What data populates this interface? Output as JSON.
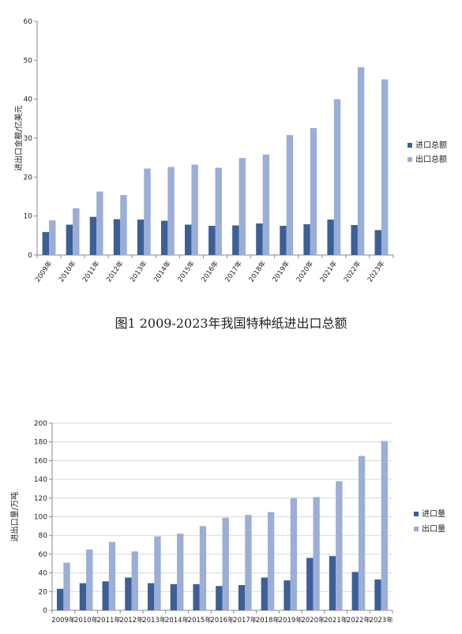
{
  "chart_data": [
    {
      "type": "bar",
      "categories": [
        "2009年",
        "2010年",
        "2011年",
        "2012年",
        "2013年",
        "2014年",
        "2015年",
        "2016年",
        "2017年",
        "2018年",
        "2019年",
        "2020年",
        "2021年",
        "2022年",
        "2023年"
      ],
      "ylabel": "进出口金额/亿美元",
      "ylim": [
        0,
        60
      ],
      "yticks": [
        0,
        10,
        20,
        30,
        40,
        50,
        60
      ],
      "grid": false,
      "legend_position": "right",
      "series": [
        {
          "name": "进口总额",
          "color": "#3c5f98",
          "values": [
            5.9,
            7.8,
            9.8,
            9.2,
            9.1,
            8.8,
            7.8,
            7.5,
            7.6,
            8.1,
            7.5,
            7.9,
            9.1,
            7.7,
            6.4
          ]
        },
        {
          "name": "出口总额",
          "color": "#9aaed6",
          "values": [
            8.9,
            12.0,
            16.3,
            15.4,
            22.2,
            22.6,
            23.2,
            22.4,
            24.9,
            25.8,
            30.8,
            32.6,
            40.0,
            48.2,
            45.1
          ]
        }
      ]
    },
    {
      "type": "bar",
      "categories": [
        "2009年",
        "2010年",
        "2011年",
        "2012年",
        "2013年",
        "2014年",
        "2015年",
        "2016年",
        "2017年",
        "2018年",
        "2019年",
        "2020年",
        "2021年",
        "2022年",
        "2023年"
      ],
      "ylabel": "进出口量/万吨",
      "ylim": [
        0,
        200
      ],
      "yticks": [
        0,
        20,
        40,
        60,
        80,
        100,
        120,
        140,
        160,
        180,
        200
      ],
      "grid": true,
      "legend_position": "right",
      "series": [
        {
          "name": "进口量",
          "color": "#3c5f98",
          "values": [
            23,
            29,
            31,
            35,
            29,
            28,
            28,
            26,
            27,
            35,
            32,
            56,
            58,
            41,
            33
          ]
        },
        {
          "name": "出口量",
          "color": "#9aaed6",
          "values": [
            51,
            65,
            73,
            63,
            79,
            82,
            90,
            99,
            102,
            105,
            120,
            121,
            138,
            165,
            181
          ]
        }
      ]
    }
  ],
  "caption1": "图1 2009-2023年我国特种纸进出口总额"
}
